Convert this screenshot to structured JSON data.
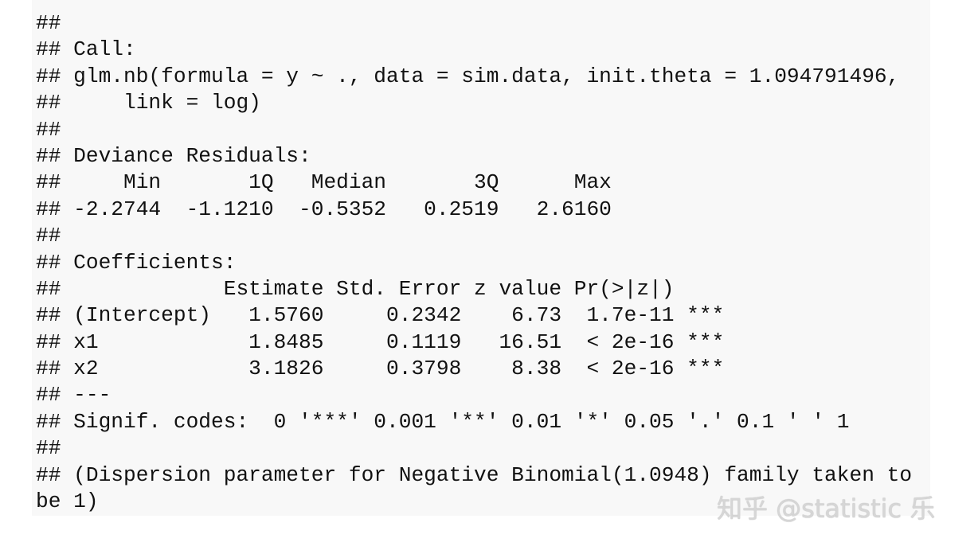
{
  "code": {
    "lines": [
      "##",
      "## Call:",
      "## glm.nb(formula = y ~ ., data = sim.data, init.theta = 1.094791496, ",
      "##     link = log)",
      "##",
      "## Deviance Residuals: ",
      "##     Min       1Q   Median       3Q      Max  ",
      "## -2.2744  -1.1210  -0.5352   0.2519   2.6160  ",
      "##",
      "## Coefficients:",
      "##             Estimate Std. Error z value Pr(>|z|)    ",
      "## (Intercept)   1.5760     0.2342    6.73  1.7e-11 ***",
      "## x1            1.8485     0.1119   16.51  < 2e-16 ***",
      "## x2            3.1826     0.3798    8.38  < 2e-16 ***",
      "## ---",
      "## Signif. codes:  0 '***' 0.001 '**' 0.01 '*' 0.05 '.' 0.1 ' ' 1",
      "##",
      "## (Dispersion parameter for Negative Binomial(1.0948) family taken to",
      "be 1)"
    ]
  },
  "watermark": "知乎 @statistic 乐"
}
